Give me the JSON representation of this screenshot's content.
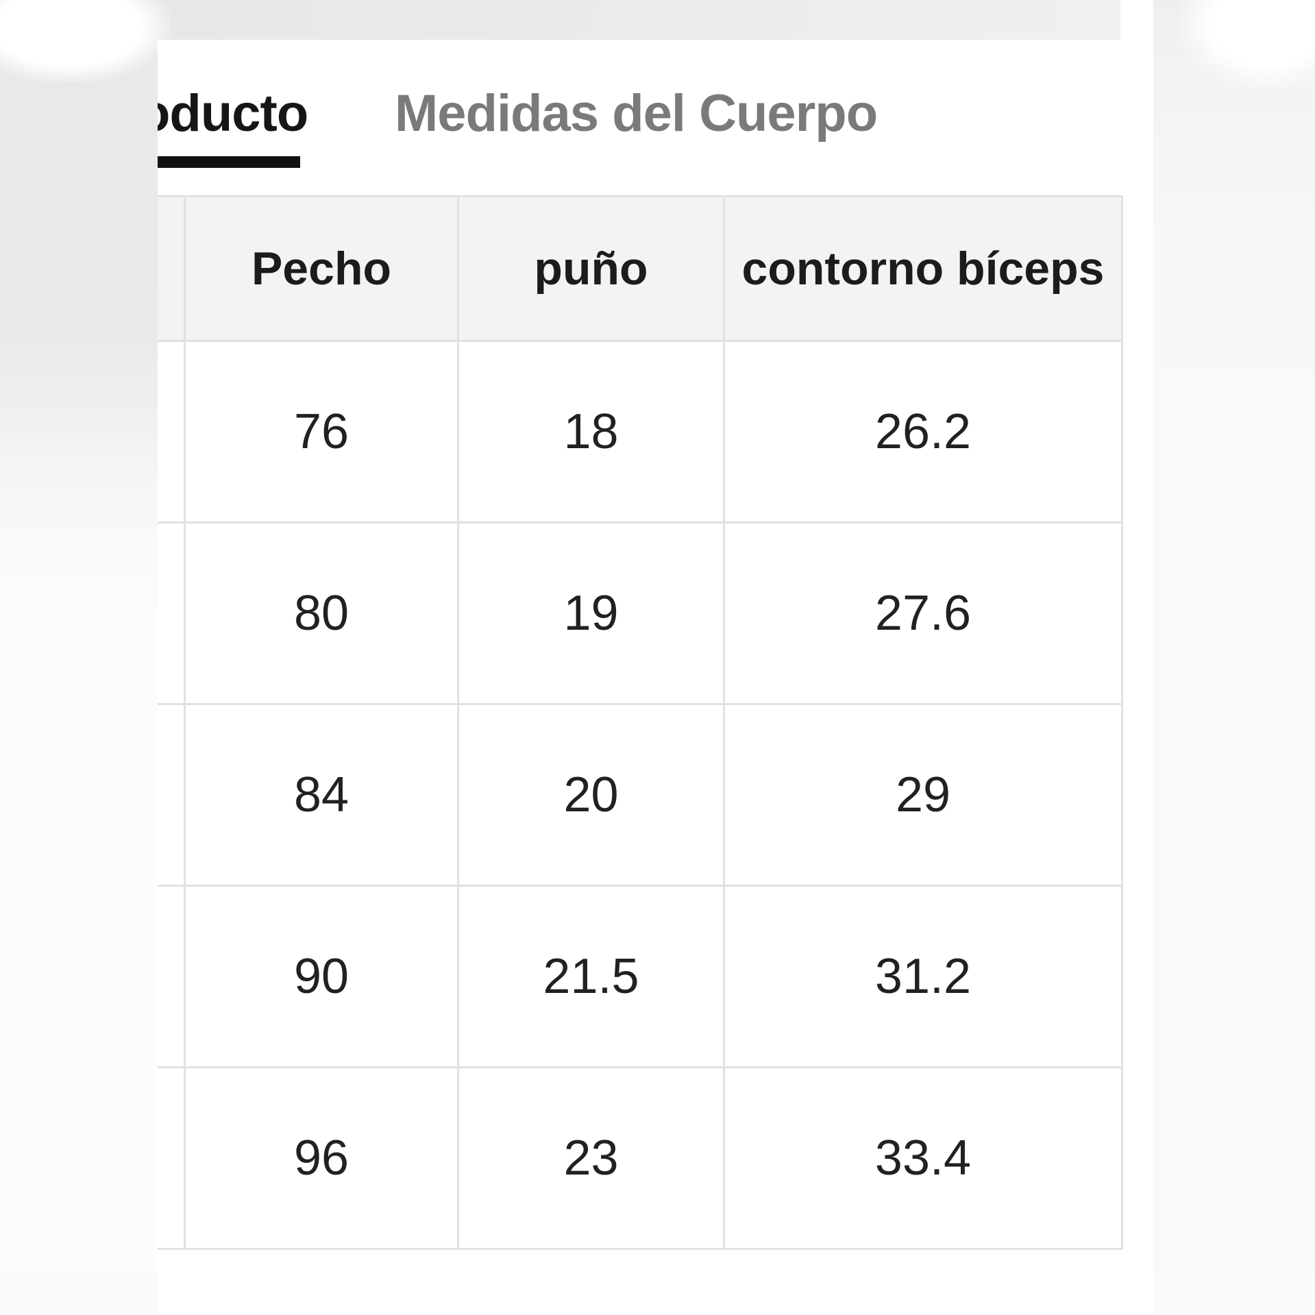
{
  "tab_bar": {
    "tabs": [
      {
        "label": "oducto",
        "state": "active"
      },
      {
        "label": "Medidas del Cuerpo",
        "state": "inactive"
      }
    ]
  },
  "size_table": {
    "columns": [
      "",
      "Pecho",
      "puño",
      "contorno bíceps"
    ],
    "rows": [
      {
        "cells": [
          "",
          "76",
          "18",
          "26.2"
        ]
      },
      {
        "cells": [
          "",
          "80",
          "19",
          "27.6"
        ]
      },
      {
        "cells": [
          "",
          "84",
          "20",
          "29"
        ]
      },
      {
        "cells": [
          "",
          "90",
          "21.5",
          "31.2"
        ]
      },
      {
        "cells": [
          "",
          "96",
          "23",
          "33.4"
        ]
      }
    ]
  },
  "colors": {
    "active_tab_text": "#161616",
    "inactive_tab_text": "#7b7a7a",
    "tab_underline": "#121212",
    "table_header_bg": "#f4f3f3",
    "table_border": "#e2e1e1",
    "cell_text": "#212121",
    "panel_bg": "#ffffff"
  }
}
